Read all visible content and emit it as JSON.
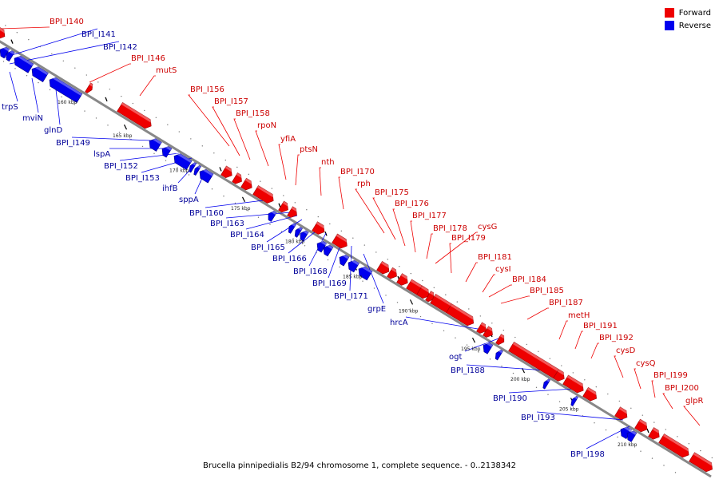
{
  "colors": {
    "forward": "#ee0000",
    "reverse": "#0000ee",
    "backbone": "#888888",
    "tick": "#000000"
  },
  "legend": {
    "forward_label": "Forward",
    "reverse_label": "Reverse"
  },
  "caption": "Brucella pinnipedialis B2/94 chromosome 1, complete sequence. - 0..2138342",
  "scale": {
    "ticks": [
      {
        "label": "160 kbp"
      },
      {
        "label": "165 kbp"
      },
      {
        "label": "170 kbp"
      },
      {
        "label": "175 kbp"
      },
      {
        "label": "180 kbp"
      },
      {
        "label": "185 kbp"
      },
      {
        "label": "190 kbp"
      },
      {
        "label": "195 kbp"
      },
      {
        "label": "200 kbp"
      },
      {
        "label": "205 kbp"
      },
      {
        "label": "210 kbp"
      }
    ]
  },
  "forward_genes": [
    "BPI_I140",
    "BPI_I146",
    "mutS",
    "BPI_I156",
    "BPI_I157",
    "BPI_I158",
    "rpoN",
    "yfiA",
    "ptsN",
    "nth",
    "BPI_I170",
    "rph",
    "BPI_I175",
    "BPI_I176",
    "BPI_I177",
    "BPI_I178",
    "cysG",
    "BPI_I179",
    "BPI_I181",
    "cysI",
    "BPI_I184",
    "BPI_I185",
    "BPI_I187",
    "metH",
    "BPI_I191",
    "BPI_I192",
    "cysD",
    "cysQ",
    "BPI_I199",
    "BPI_I200",
    "glpR"
  ],
  "reverse_genes": [
    "BPI_I141",
    "BPI_I142",
    "trpS",
    "mviN",
    "glnD",
    "BPI_I149",
    "lspA",
    "BPI_I152",
    "BPI_I153",
    "ihfB",
    "sppA",
    "BPI_I160",
    "BPI_I163",
    "BPI_I164",
    "BPI_I165",
    "BPI_I166",
    "BPI_I168",
    "BPI_I169",
    "BPI_I171",
    "grpE",
    "hrcA",
    "ogt",
    "BPI_I188",
    "BPI_I190",
    "BPI_I193",
    "BPI_I198"
  ]
}
